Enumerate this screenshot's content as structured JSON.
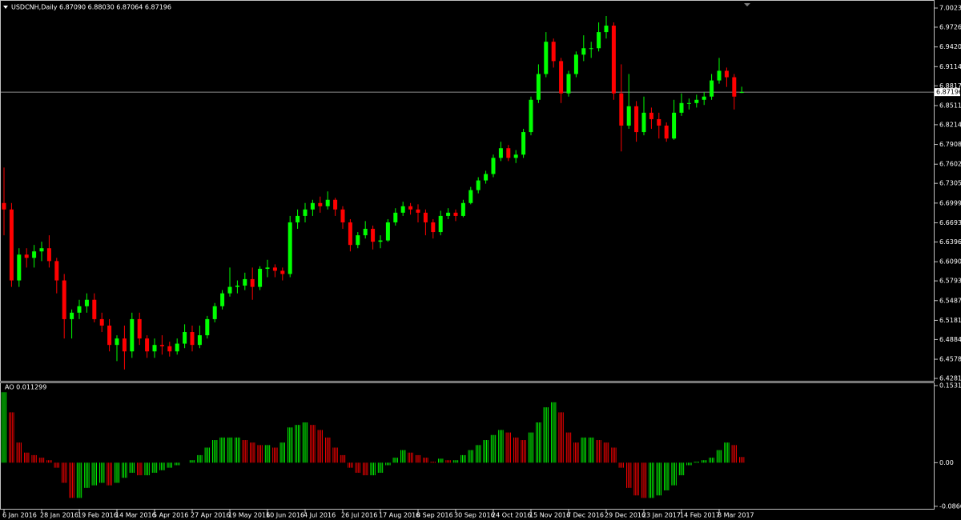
{
  "chart_data": [
    {
      "type": "candlestick",
      "title": "USDCNH,Daily  6.87090 6.88030 6.87064 6.87196",
      "categories": [
        "6 Jan 2016",
        null,
        null,
        null,
        null,
        "28 Jan 2016",
        null,
        null,
        null,
        null,
        "19 Feb 2016",
        null,
        null,
        null,
        null,
        "14 Mar 2016",
        null,
        null,
        null,
        null,
        "5 Apr 2016",
        null,
        null,
        null,
        null,
        "27 Apr 2016",
        null,
        null,
        null,
        null,
        "19 May 2016",
        null,
        null,
        null,
        null,
        "10 Jun 2016",
        null,
        null,
        null,
        null,
        "4 Jul 2016",
        null,
        null,
        null,
        null,
        "26 Jul 2016",
        null,
        null,
        null,
        null,
        "17 Aug 2016",
        null,
        null,
        null,
        null,
        "8 Sep 2016",
        null,
        null,
        null,
        null,
        "30 Sep 2016",
        null,
        null,
        null,
        null,
        "24 Oct 2016",
        null,
        null,
        null,
        null,
        "15 Nov 2016",
        null,
        null,
        null,
        null,
        "7 Dec 2016",
        null,
        null,
        null,
        null,
        "29 Dec 2016",
        null,
        null,
        null,
        null,
        "23 Jan 2017",
        null,
        null,
        null,
        null,
        "14 Feb 2017",
        null,
        null,
        null,
        null,
        "8 Mar 2017",
        null,
        null,
        null
      ],
      "open": [
        6.7,
        6.69,
        6.58,
        6.62,
        6.615,
        6.625,
        6.63,
        6.61,
        6.58,
        6.52,
        6.53,
        6.54,
        6.55,
        6.52,
        6.51,
        6.48,
        6.49,
        6.47,
        6.52,
        6.49,
        6.47,
        6.48,
        6.478,
        6.47,
        6.482,
        6.5,
        6.48,
        6.495,
        6.52,
        6.54,
        6.56,
        6.57,
        6.572,
        6.582,
        6.57,
        6.598,
        6.6,
        6.595,
        6.59,
        6.67,
        6.68,
        6.69,
        6.7,
        6.695,
        6.705,
        6.69,
        6.67,
        6.635,
        6.65,
        6.66,
        6.64,
        6.642,
        6.67,
        6.685,
        6.695,
        6.69,
        6.685,
        6.67,
        6.655,
        6.68,
        6.685,
        6.68,
        6.7,
        6.72,
        6.735,
        6.745,
        6.77,
        6.785,
        6.77,
        6.775,
        6.81,
        6.86,
        6.9,
        6.95,
        6.92,
        6.87,
        6.9,
        6.93,
        6.94,
        6.94,
        6.965,
        6.975,
        6.87,
        6.82,
        6.85,
        6.81,
        6.84,
        6.83,
        6.82,
        6.8,
        6.84,
        6.855,
        6.855,
        6.86,
        6.865,
        6.89,
        6.905,
        6.895,
        6.8709
      ],
      "high": [
        6.755,
        6.7,
        6.63,
        6.63,
        6.635,
        6.64,
        6.65,
        6.615,
        6.59,
        6.535,
        6.55,
        6.56,
        6.56,
        6.53,
        6.52,
        6.495,
        6.51,
        6.53,
        6.53,
        6.495,
        6.49,
        6.495,
        6.485,
        6.49,
        6.512,
        6.51,
        6.51,
        6.525,
        6.545,
        6.565,
        6.6,
        6.58,
        6.592,
        6.6,
        6.602,
        6.612,
        6.605,
        6.6,
        6.68,
        6.69,
        6.7,
        6.705,
        6.71,
        6.718,
        6.708,
        6.695,
        6.675,
        6.655,
        6.672,
        6.665,
        6.65,
        6.675,
        6.692,
        6.702,
        6.7,
        6.698,
        6.69,
        6.675,
        6.688,
        6.692,
        6.69,
        6.705,
        6.725,
        6.74,
        6.75,
        6.775,
        6.795,
        6.79,
        6.782,
        6.815,
        6.865,
        6.915,
        6.965,
        6.955,
        6.925,
        6.905,
        6.935,
        6.96,
        6.95,
        6.98,
        6.99,
        6.98,
        6.915,
        6.9,
        6.858,
        6.865,
        6.848,
        6.84,
        6.825,
        6.86,
        6.87,
        6.862,
        6.868,
        6.872,
        6.9,
        6.925,
        6.91,
        6.9,
        6.8803
      ],
      "low": [
        6.65,
        6.57,
        6.57,
        6.6,
        6.6,
        6.61,
        6.6,
        6.56,
        6.49,
        6.49,
        6.52,
        6.53,
        6.515,
        6.5,
        6.47,
        6.455,
        6.442,
        6.46,
        6.48,
        6.46,
        6.46,
        6.465,
        6.462,
        6.465,
        6.475,
        6.47,
        6.475,
        6.49,
        6.515,
        6.535,
        6.555,
        6.56,
        6.565,
        6.55,
        6.565,
        6.585,
        6.585,
        6.58,
        6.585,
        6.66,
        6.67,
        6.68,
        6.685,
        6.69,
        6.68,
        6.66,
        6.625,
        6.63,
        6.645,
        6.628,
        6.63,
        6.64,
        6.665,
        6.68,
        6.682,
        6.67,
        6.65,
        6.645,
        6.65,
        6.675,
        6.672,
        6.678,
        6.698,
        6.715,
        6.73,
        6.74,
        6.765,
        6.765,
        6.762,
        6.77,
        6.805,
        6.855,
        6.895,
        6.91,
        6.855,
        6.865,
        6.895,
        6.92,
        6.925,
        6.935,
        6.955,
        6.86,
        6.78,
        6.815,
        6.795,
        6.805,
        6.815,
        6.8,
        6.795,
        6.798,
        6.835,
        6.845,
        6.848,
        6.852,
        6.86,
        6.885,
        6.88,
        6.845,
        6.8706
      ],
      "close": [
        6.69,
        6.58,
        6.62,
        6.615,
        6.625,
        6.63,
        6.61,
        6.58,
        6.52,
        6.53,
        6.54,
        6.55,
        6.52,
        6.51,
        6.48,
        6.49,
        6.47,
        6.52,
        6.49,
        6.47,
        6.48,
        6.478,
        6.47,
        6.482,
        6.5,
        6.48,
        6.495,
        6.52,
        6.54,
        6.56,
        6.57,
        6.572,
        6.582,
        6.57,
        6.598,
        6.6,
        6.595,
        6.59,
        6.67,
        6.68,
        6.69,
        6.7,
        6.695,
        6.705,
        6.69,
        6.67,
        6.635,
        6.65,
        6.66,
        6.64,
        6.642,
        6.67,
        6.685,
        6.695,
        6.69,
        6.685,
        6.67,
        6.655,
        6.68,
        6.685,
        6.68,
        6.7,
        6.72,
        6.735,
        6.745,
        6.77,
        6.785,
        6.77,
        6.775,
        6.81,
        6.86,
        6.9,
        6.95,
        6.92,
        6.87,
        6.9,
        6.93,
        6.94,
        6.94,
        6.965,
        6.975,
        6.87,
        6.82,
        6.85,
        6.81,
        6.84,
        6.83,
        6.82,
        6.8,
        6.84,
        6.855,
        6.855,
        6.86,
        6.865,
        6.89,
        6.905,
        6.895,
        6.865,
        6.87196
      ],
      "up_color": "#00ff00",
      "down_color": "#ff0000",
      "current_price": {
        "value": 6.87196,
        "label": "6.87196"
      },
      "ylim": [
        6.4244,
        7.0135
      ],
      "yticks": [
        {
          "value": 7.0023,
          "label": "7.00230"
        },
        {
          "value": 6.9726,
          "label": "6.97260"
        },
        {
          "value": 6.942,
          "label": "6.94200"
        },
        {
          "value": 6.9114,
          "label": "6.91140"
        },
        {
          "value": 6.8817,
          "label": "6.88170"
        },
        {
          "value": 6.8511,
          "label": "6.85110"
        },
        {
          "value": 6.8214,
          "label": "6.82140"
        },
        {
          "value": 6.7908,
          "label": "6.79080"
        },
        {
          "value": 6.7602,
          "label": "6.76020"
        },
        {
          "value": 6.7305,
          "label": "6.73050"
        },
        {
          "value": 6.6999,
          "label": "6.69990"
        },
        {
          "value": 6.6693,
          "label": "6.66930"
        },
        {
          "value": 6.6396,
          "label": "6.63960"
        },
        {
          "value": 6.609,
          "label": "6.60900"
        },
        {
          "value": 6.5793,
          "label": "6.57930"
        },
        {
          "value": 6.5487,
          "label": "6.54870"
        },
        {
          "value": 6.5181,
          "label": "6.51810"
        },
        {
          "value": 6.4884,
          "label": "6.48840"
        },
        {
          "value": 6.4578,
          "label": "6.45780"
        },
        {
          "value": 6.4281,
          "label": "6.42810"
        }
      ]
    },
    {
      "type": "histogram-ao",
      "title": "AO 0.011299",
      "values": [
        0.14,
        0.1,
        0.04,
        0.02,
        0.015,
        0.01,
        0.005,
        -0.01,
        -0.04,
        -0.07,
        -0.07,
        -0.05,
        -0.045,
        -0.04,
        -0.045,
        -0.04,
        -0.03,
        -0.02,
        -0.025,
        -0.025,
        -0.02,
        -0.015,
        -0.01,
        -0.005,
        0.0,
        0.005,
        0.015,
        0.03,
        0.045,
        0.05,
        0.05,
        0.05,
        0.045,
        0.04,
        0.035,
        0.035,
        0.03,
        0.04,
        0.07,
        0.075,
        0.08,
        0.075,
        0.065,
        0.05,
        0.03,
        0.015,
        -0.01,
        -0.02,
        -0.025,
        -0.025,
        -0.02,
        -0.005,
        0.01,
        0.025,
        0.02,
        0.015,
        0.01,
        0.002,
        0.008,
        0.005,
        0.005,
        0.015,
        0.025,
        0.035,
        0.045,
        0.055,
        0.065,
        0.06,
        0.05,
        0.045,
        0.06,
        0.08,
        0.11,
        0.12,
        0.1,
        0.06,
        0.04,
        0.05,
        0.05,
        0.045,
        0.04,
        0.03,
        -0.01,
        -0.05,
        -0.065,
        -0.07,
        -0.07,
        -0.065,
        -0.055,
        -0.045,
        -0.025,
        -0.005,
        0.002,
        0.005,
        0.01,
        0.025,
        0.04,
        0.035,
        0.011299
      ],
      "up_color": "#00ff00",
      "down_color": "#ff0000",
      "ylim": [
        -0.0916,
        0.1579
      ],
      "yticks": [
        0.153198,
        {
          "value": 0,
          "label": "0.00"
        },
        -0.086635
      ]
    }
  ]
}
